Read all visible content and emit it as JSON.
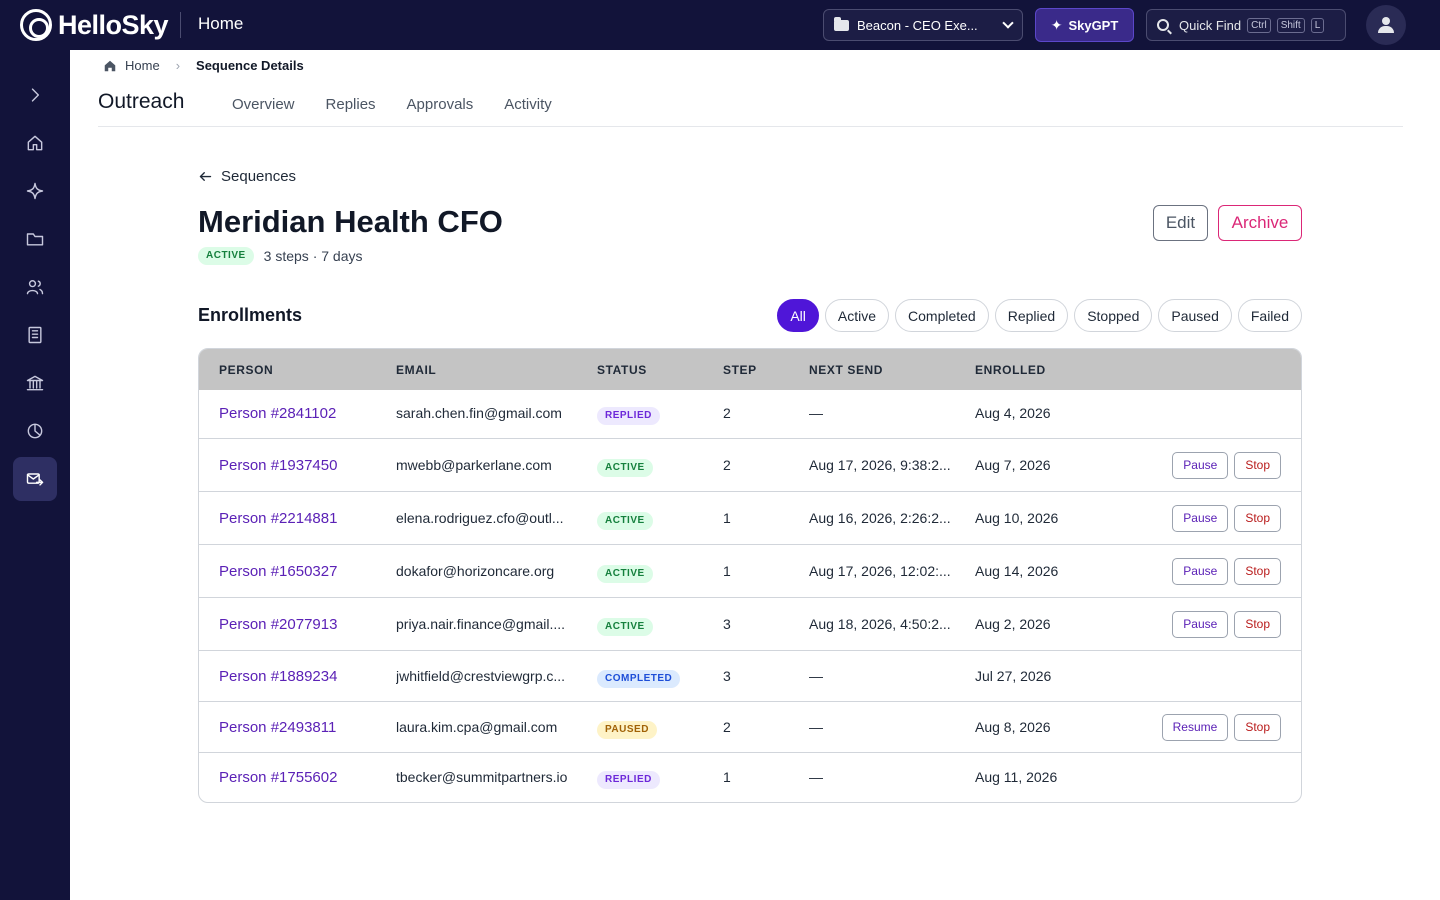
{
  "app": {
    "brand": "HelloSky",
    "section": "Home",
    "workspace": "Beacon - CEO Exe...",
    "skygpt_label": "SkyGPT",
    "quickfind": {
      "label": "Quick Find",
      "keys": [
        "Ctrl",
        "Shift",
        "L"
      ]
    }
  },
  "sidebar": {
    "items": [
      {
        "name": "expand",
        "icon": "chevron-right-icon"
      },
      {
        "name": "home",
        "icon": "home-icon"
      },
      {
        "name": "ai",
        "icon": "sparkle-icon"
      },
      {
        "name": "files",
        "icon": "folder-icon"
      },
      {
        "name": "people",
        "icon": "users-icon"
      },
      {
        "name": "companies",
        "icon": "building-icon"
      },
      {
        "name": "institutions",
        "icon": "bank-icon"
      },
      {
        "name": "analytics",
        "icon": "pie-chart-icon"
      },
      {
        "name": "outreach",
        "icon": "mail-send-icon",
        "active": true
      }
    ]
  },
  "breadcrumb": {
    "home": "Home",
    "current": "Sequence Details"
  },
  "header": {
    "title": "Outreach",
    "tabs": [
      "Overview",
      "Replies",
      "Approvals",
      "Activity"
    ]
  },
  "sequence": {
    "back_label": "Sequences",
    "name": "Meridian Health CFO",
    "status": "ACTIVE",
    "meta": "3 steps · 7 days",
    "edit_label": "Edit",
    "archive_label": "Archive"
  },
  "enrollments": {
    "title": "Enrollments",
    "filters": [
      "All",
      "Active",
      "Completed",
      "Replied",
      "Stopped",
      "Paused",
      "Failed"
    ],
    "selected_filter": "All",
    "columns": [
      "PERSON",
      "EMAIL",
      "STATUS",
      "STEP",
      "NEXT SEND",
      "ENROLLED"
    ],
    "rows": [
      {
        "person": "Person #2841102",
        "email": "sarah.chen.fin@gmail.com",
        "status": "REPLIED",
        "step": "2",
        "next_send": "—",
        "enrolled": "Aug 4, 2026",
        "actions": []
      },
      {
        "person": "Person #1937450",
        "email": "mwebb@parkerlane.com",
        "status": "ACTIVE",
        "step": "2",
        "next_send": "Aug 17, 2026, 9:38:2...",
        "enrolled": "Aug 7, 2026",
        "actions": [
          "Pause",
          "Stop"
        ]
      },
      {
        "person": "Person #2214881",
        "email": "elena.rodriguez.cfo@outl...",
        "status": "ACTIVE",
        "step": "1",
        "next_send": "Aug 16, 2026, 2:26:2...",
        "enrolled": "Aug 10, 2026",
        "actions": [
          "Pause",
          "Stop"
        ]
      },
      {
        "person": "Person #1650327",
        "email": "dokafor@horizoncare.org",
        "status": "ACTIVE",
        "step": "1",
        "next_send": "Aug 17, 2026, 12:02:...",
        "enrolled": "Aug 14, 2026",
        "actions": [
          "Pause",
          "Stop"
        ]
      },
      {
        "person": "Person #2077913",
        "email": "priya.nair.finance@gmail....",
        "status": "ACTIVE",
        "step": "3",
        "next_send": "Aug 18, 2026, 4:50:2...",
        "enrolled": "Aug 2, 2026",
        "actions": [
          "Pause",
          "Stop"
        ]
      },
      {
        "person": "Person #1889234",
        "email": "jwhitfield@crestviewgrp.c...",
        "status": "COMPLETED",
        "step": "3",
        "next_send": "—",
        "enrolled": "Jul 27, 2026",
        "actions": []
      },
      {
        "person": "Person #2493811",
        "email": "laura.kim.cpa@gmail.com",
        "status": "PAUSED",
        "step": "2",
        "next_send": "—",
        "enrolled": "Aug 8, 2026",
        "actions": [
          "Resume",
          "Stop"
        ]
      },
      {
        "person": "Person #1755602",
        "email": "tbecker@summitpartners.io",
        "status": "REPLIED",
        "step": "1",
        "next_send": "—",
        "enrolled": "Aug 11, 2026",
        "actions": []
      }
    ]
  },
  "colors": {
    "nav_bg": "#12133a",
    "accent": "#4f16d8",
    "archive": "#db2777",
    "link": "#5b21b6"
  }
}
